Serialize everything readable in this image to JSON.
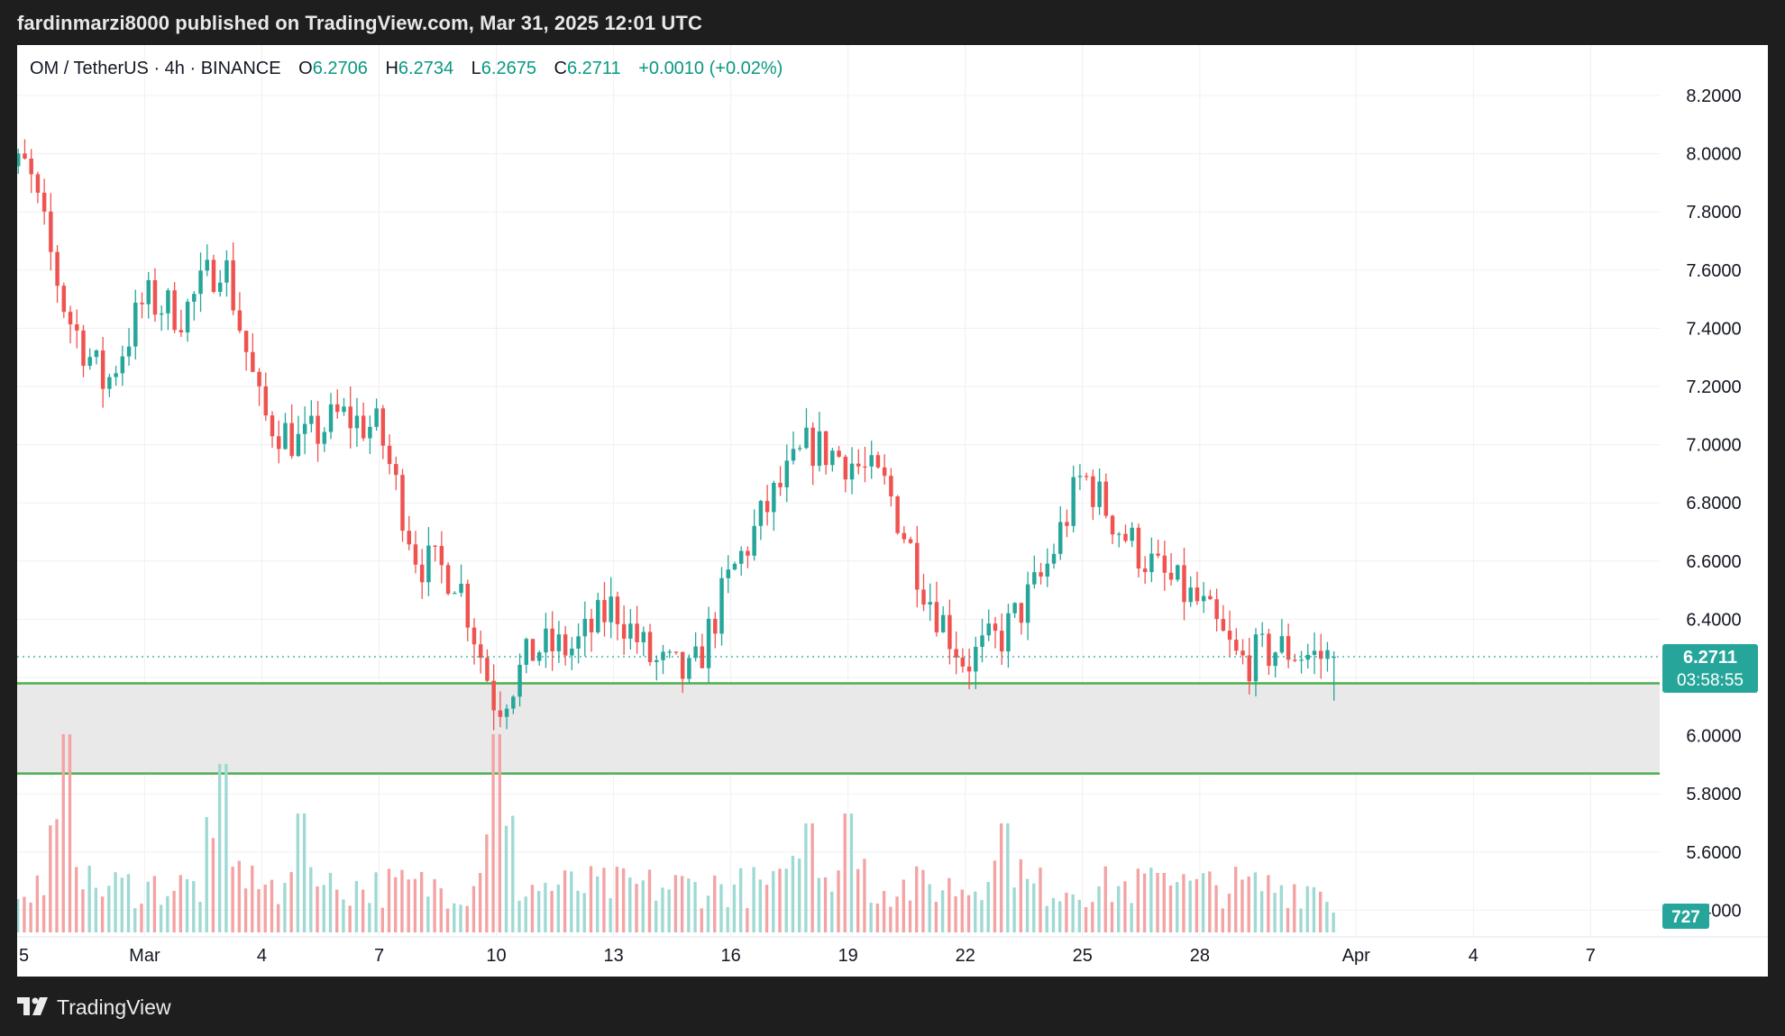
{
  "header": {
    "published_by": "fardinmarzi8000 published on TradingView.com, Mar 31, 2025 12:01 UTC"
  },
  "legend": {
    "symbol": "OM / TetherUS · 4h · BINANCE",
    "open_label": "O",
    "open": "6.2706",
    "high_label": "H",
    "high": "6.2734",
    "low_label": "L",
    "low": "6.2675",
    "close_label": "C",
    "close": "6.2711",
    "change": "+0.0010 (+0.02%)"
  },
  "price_axis": {
    "ticks": [
      "8.2000",
      "8.0000",
      "7.8000",
      "7.6000",
      "7.4000",
      "7.2000",
      "7.0000",
      "6.8000",
      "6.6000",
      "6.4000",
      "6.0000",
      "5.8000",
      "5.6000",
      "5.4000"
    ],
    "last_price": "6.2711",
    "countdown": "03:58:55",
    "volume_badge": "727"
  },
  "time_axis": {
    "labels": [
      "5",
      "Mar",
      "4",
      "7",
      "10",
      "13",
      "16",
      "19",
      "22",
      "25",
      "28",
      "Apr",
      "4",
      "7"
    ]
  },
  "footer": {
    "brand": "TradingView"
  },
  "colors": {
    "up": "#26a69a",
    "down": "#ef5350",
    "vol_up": "#9fd9d3",
    "vol_down": "#f3a3a3",
    "support_lines": "#4caf50",
    "zone_fill": "#e9e9e9"
  },
  "chart_data": {
    "type": "candlestick",
    "symbol": "OM / TetherUS",
    "interval": "4h",
    "exchange": "BINANCE",
    "ylim": [
      5.4,
      8.2
    ],
    "x_range_days": [
      "2025-02-25",
      "2025-04-08"
    ],
    "last_price": 6.2711,
    "zones": [
      {
        "upper": 6.18,
        "lower": 5.87
      }
    ],
    "anchors": [
      {
        "date": "2025-02-26",
        "price": 7.95
      },
      {
        "date": "2025-02-27",
        "price": 7.45
      },
      {
        "date": "2025-02-28",
        "price": 7.2
      },
      {
        "date": "2025-03-01",
        "price": 7.5
      },
      {
        "date": "2025-03-02",
        "price": 7.45
      },
      {
        "date": "2025-03-03",
        "price": 7.65
      },
      {
        "date": "2025-03-04",
        "price": 7.1
      },
      {
        "date": "2025-03-05",
        "price": 7.0
      },
      {
        "date": "2025-03-06",
        "price": 7.1
      },
      {
        "date": "2025-03-07",
        "price": 7.05
      },
      {
        "date": "2025-03-08",
        "price": 6.6
      },
      {
        "date": "2025-03-09",
        "price": 6.55
      },
      {
        "date": "2025-03-10",
        "price": 6.1
      },
      {
        "date": "2025-03-11",
        "price": 6.3
      },
      {
        "date": "2025-03-12",
        "price": 6.3
      },
      {
        "date": "2025-03-13",
        "price": 6.45
      },
      {
        "date": "2025-03-14",
        "price": 6.25
      },
      {
        "date": "2025-03-15",
        "price": 6.2
      },
      {
        "date": "2025-03-16",
        "price": 6.55
      },
      {
        "date": "2025-03-17",
        "price": 6.8
      },
      {
        "date": "2025-03-18",
        "price": 7.0
      },
      {
        "date": "2025-03-19",
        "price": 6.95
      },
      {
        "date": "2025-03-20",
        "price": 6.85
      },
      {
        "date": "2025-03-21",
        "price": 6.5
      },
      {
        "date": "2025-03-22",
        "price": 6.25
      },
      {
        "date": "2025-03-23",
        "price": 6.35
      },
      {
        "date": "2025-03-24",
        "price": 6.55
      },
      {
        "date": "2025-03-25",
        "price": 6.9
      },
      {
        "date": "2025-03-26",
        "price": 6.7
      },
      {
        "date": "2025-03-27",
        "price": 6.55
      },
      {
        "date": "2025-03-28",
        "price": 6.45
      },
      {
        "date": "2025-03-29",
        "price": 6.25
      },
      {
        "date": "2025-03-30",
        "price": 6.3
      },
      {
        "date": "2025-03-31",
        "price": 6.27
      }
    ],
    "volume_spikes": [
      {
        "date": "2025-02-27",
        "value": 1.0
      },
      {
        "date": "2025-03-03",
        "value": 0.85
      },
      {
        "date": "2025-03-05",
        "value": 0.6
      },
      {
        "date": "2025-03-10",
        "value": 1.0
      },
      {
        "date": "2025-03-18",
        "value": 0.55
      },
      {
        "date": "2025-03-19",
        "value": 0.6
      },
      {
        "date": "2025-03-23",
        "value": 0.55
      },
      {
        "date": "2025-03-27",
        "value": 0.3
      }
    ],
    "last_volume": 727
  }
}
